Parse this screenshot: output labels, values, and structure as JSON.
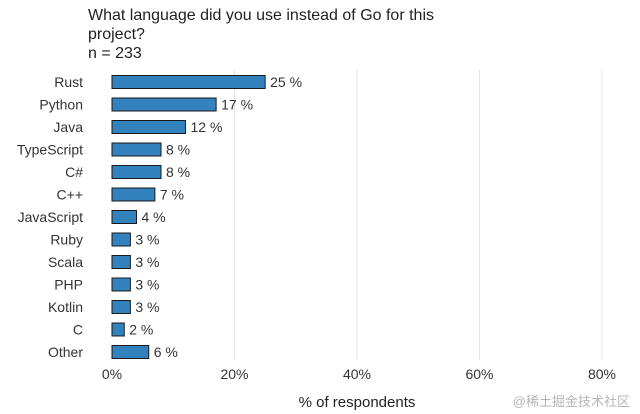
{
  "chart_data": {
    "type": "bar",
    "orientation": "horizontal",
    "title": "What language did you use instead of Go for this project?",
    "subtitle": "n = 233",
    "categories": [
      "Rust",
      "Python",
      "Java",
      "TypeScript",
      "C#",
      "C++",
      "JavaScript",
      "Ruby",
      "Scala",
      "PHP",
      "Kotlin",
      "C",
      "Other"
    ],
    "values": [
      25,
      17,
      12,
      8,
      8,
      7,
      4,
      3,
      3,
      3,
      3,
      2,
      6
    ],
    "value_labels": [
      "25 %",
      "17 %",
      "12 %",
      "8 %",
      "8 %",
      "7 %",
      "4 %",
      "3 %",
      "3 %",
      "3 %",
      "3 %",
      "2 %",
      "6 %"
    ],
    "xlabel": "% of respondents",
    "ylabel": "",
    "xlim": [
      0,
      80
    ],
    "xticks": [
      0,
      20,
      40,
      60,
      80
    ],
    "xtick_labels": [
      "0%",
      "20%",
      "40%",
      "60%",
      "80%"
    ],
    "grid": true,
    "bar_color": "#3182bd",
    "bar_edge_color": "#1a1a1a"
  },
  "watermark": "@稀土掘金技术社区"
}
